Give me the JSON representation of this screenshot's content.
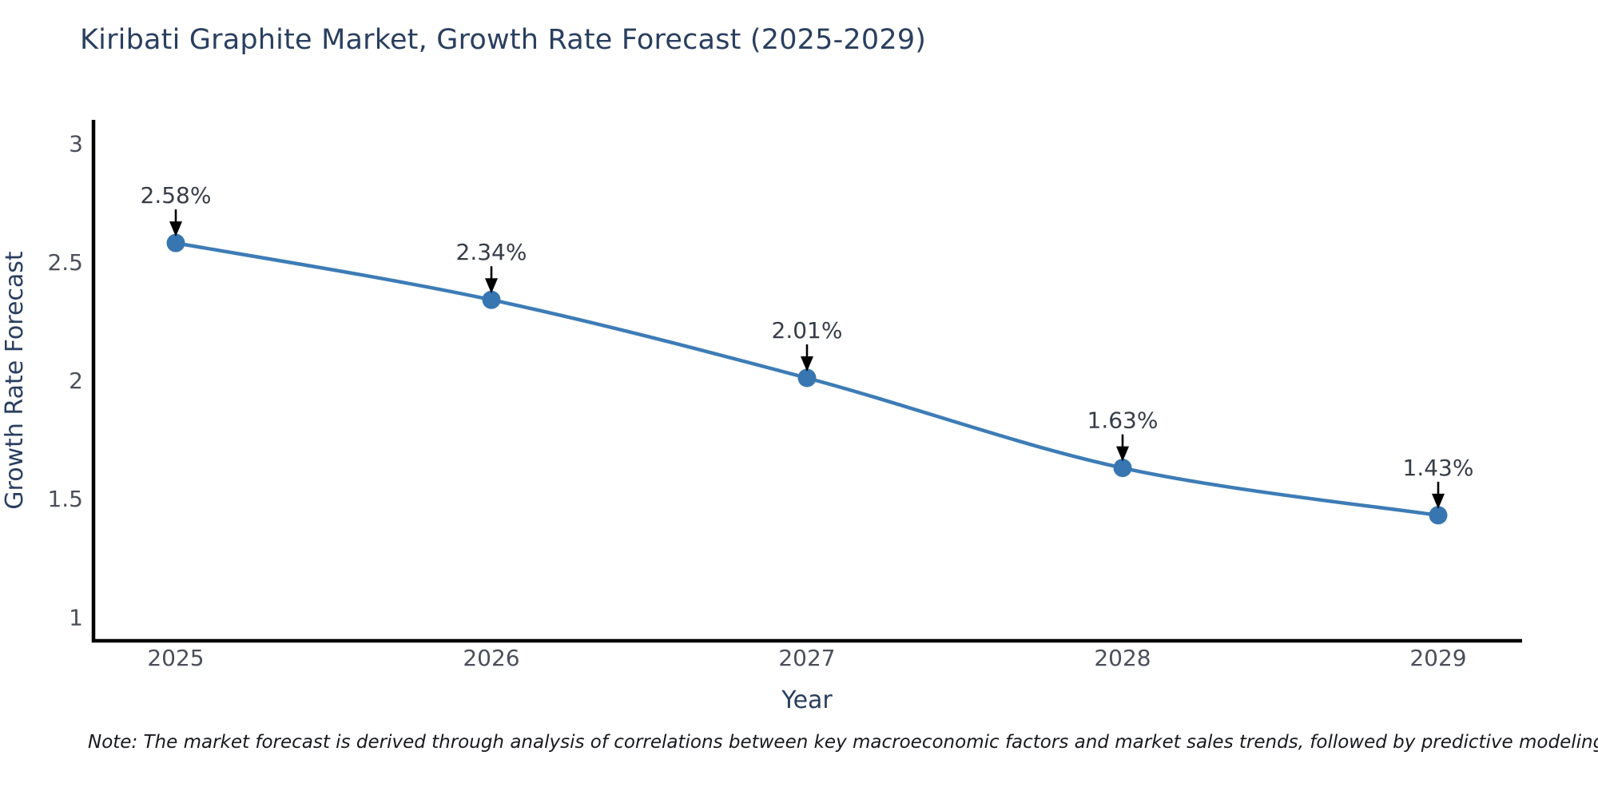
{
  "title": {
    "text": "Kiribati Graphite Market, Growth Rate Forecast (2025-2029)",
    "color": "#2a3f5f"
  },
  "note": {
    "text": "Note: The market forecast is derived through analysis of correlations between key macroeconomic factors and market sales trends, followed by predictive modeling to project future sales"
  },
  "chart_data": {
    "type": "line",
    "title": "Kiribati Graphite Market, Growth Rate Forecast (2025-2029)",
    "x": [
      2025,
      2026,
      2027,
      2028,
      2029
    ],
    "series": [
      {
        "name": "Growth Rate Forecast",
        "values": [
          2.58,
          2.34,
          2.01,
          1.63,
          1.43
        ]
      }
    ],
    "point_labels": [
      "2.58%",
      "2.34%",
      "2.01%",
      "1.63%",
      "1.43%"
    ],
    "xlabel": "Year",
    "ylabel": "Growth Rate Forecast",
    "ylim": [
      0.9,
      3.1
    ],
    "yticks": [
      1,
      1.5,
      2,
      2.5,
      3
    ],
    "xticks": [
      "2025",
      "2026",
      "2027",
      "2028",
      "2029"
    ],
    "grid": false,
    "legend_position": "none",
    "marker_style": "circle",
    "annotation_arrow": "down",
    "colors": {
      "line": "#3d7cb6",
      "marker": "#3876b2",
      "axis": "#000000",
      "tick_label": "#4a505a",
      "axis_title": "#2a3f5f",
      "annotation": "#363d47"
    }
  }
}
